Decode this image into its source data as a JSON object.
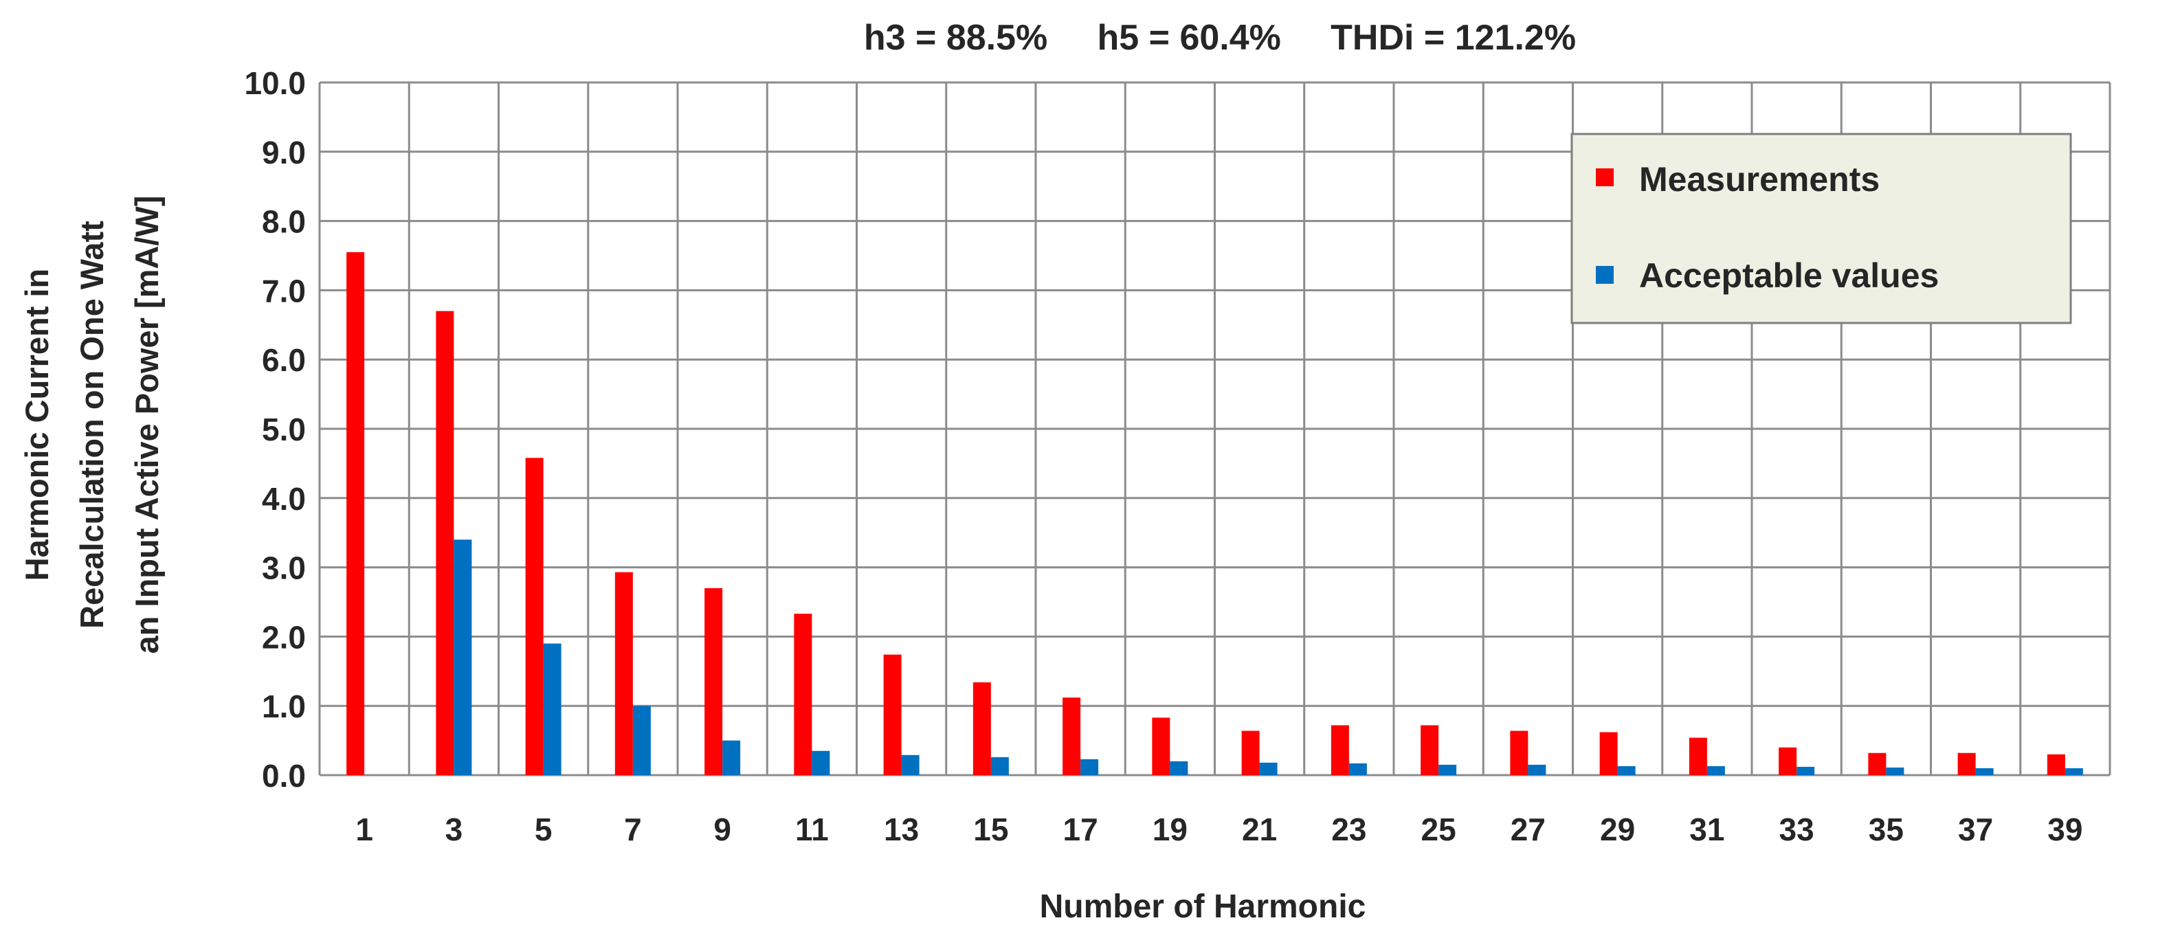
{
  "chart_data": {
    "type": "bar",
    "title": "h3 = 88.5%     h5 = 60.4%     THDi = 121.2%",
    "xlabel": "Number of Harmonic",
    "ylabel_lines": [
      "Harmonic Current in",
      "Recalculation on One Watt",
      "an Input Active Power [mA/W]"
    ],
    "categories": [
      "1",
      "3",
      "5",
      "7",
      "9",
      "11",
      "13",
      "15",
      "17",
      "19",
      "21",
      "23",
      "25",
      "27",
      "29",
      "31",
      "33",
      "35",
      "37",
      "39"
    ],
    "ylim": [
      0,
      10
    ],
    "yticks": [
      "0.0",
      "1.0",
      "2.0",
      "3.0",
      "4.0",
      "5.0",
      "6.0",
      "7.0",
      "8.0",
      "9.0",
      "10.0"
    ],
    "grid": true,
    "legend_position": "top-right",
    "series": [
      {
        "name": "Measurements",
        "color": "#ff0000",
        "values": [
          7.55,
          6.7,
          4.58,
          2.93,
          2.7,
          2.33,
          1.74,
          1.34,
          1.12,
          0.83,
          0.64,
          0.72,
          0.72,
          0.64,
          0.62,
          0.54,
          0.4,
          0.32,
          0.32,
          0.3
        ]
      },
      {
        "name": "Acceptable values",
        "color": "#0070c0",
        "values": [
          null,
          3.4,
          1.9,
          1.0,
          0.5,
          0.35,
          0.29,
          0.26,
          0.23,
          0.2,
          0.18,
          0.17,
          0.15,
          0.15,
          0.13,
          0.13,
          0.12,
          0.11,
          0.1,
          0.1
        ]
      }
    ]
  }
}
